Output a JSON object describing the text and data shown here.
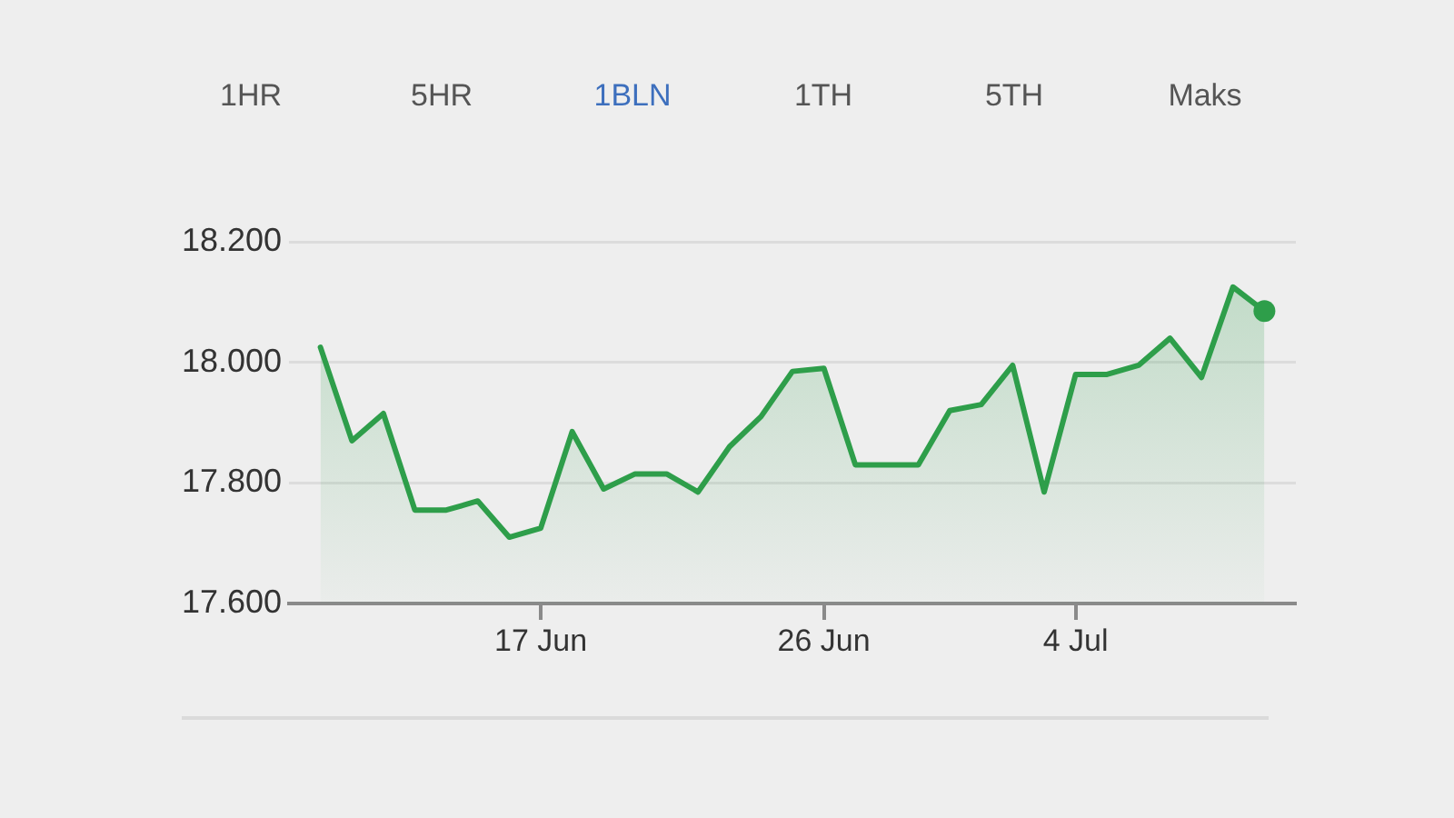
{
  "chart_data": {
    "type": "area",
    "annotations": [
      "1HR",
      "5HR",
      "1BLN",
      "1TH",
      "5TH",
      "Maks"
    ],
    "x": [
      "--06-10",
      "--06-11",
      "--06-12",
      "--06-13",
      "--06-14",
      "--06-15",
      "--06-16",
      "--06-17",
      "--06-18",
      "--06-19",
      "--06-20",
      "--06-21",
      "--06-22",
      "--06-23",
      "--06-24",
      "--06-25",
      "--06-26",
      "--06-27",
      "--06-28",
      "--06-29",
      "--06-30",
      "--07-01",
      "--07-02",
      "--07-03",
      "--07-04",
      "--07-05",
      "--07-06",
      "--07-07",
      "--07-08",
      "--07-09",
      "--07-10"
    ],
    "series": [
      {
        "color": "#2e9e4a",
        "values": [
          18025,
          17870,
          17915,
          17755,
          17755,
          17770,
          17710,
          17725,
          17885,
          17790,
          17815,
          17815,
          17785,
          17860,
          17910,
          17985,
          17990,
          17830,
          17830,
          17830,
          17920,
          17930,
          17995,
          17785,
          17980,
          17980,
          17995,
          18040,
          17975,
          18125,
          18085
        ]
      },
      {
        "type": "scatter",
        "x": [
          "--07-10"
        ],
        "values": [
          18085
        ],
        "color": "#2e9e4a",
        "marker": "circle"
      }
    ],
    "xlim": [
      "--06-09",
      "--07-11"
    ],
    "xticks": [
      {
        "value": "--06-17",
        "label": "17 Jun"
      },
      {
        "value": "--06-26",
        "label": "26 Jun"
      },
      {
        "value": "--07-04",
        "label": "4 Jul"
      }
    ],
    "ylim": [
      17600,
      18200
    ],
    "yticks": [
      {
        "value": 17600,
        "label": "17.600"
      },
      {
        "value": 17800,
        "label": "17.800"
      },
      {
        "value": 18000,
        "label": "18.000"
      },
      {
        "value": 18200,
        "label": "18.200"
      }
    ],
    "grid": "y"
  }
}
